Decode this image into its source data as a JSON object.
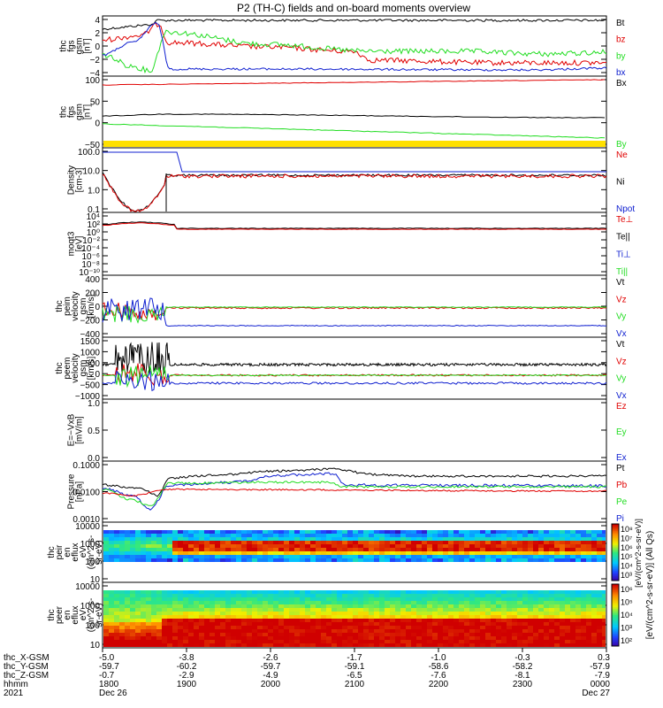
{
  "title": "P2 (TH-C) fields and on-board moments overview",
  "colors": {
    "black": "#000000",
    "red": "#e00000",
    "green": "#22dd22",
    "blue": "#1020d0",
    "yellow": "#ffe000"
  },
  "chart_data": [
    {
      "type": "line",
      "ylabel": [
        "thc",
        "fgs",
        "gsm",
        "[nT]"
      ],
      "yticks": [
        "4",
        "2",
        "0",
        "−2",
        "−4"
      ],
      "legend": [
        {
          "label": "Bt",
          "color": "black"
        },
        {
          "label": "bz",
          "color": "red"
        },
        {
          "label": "by",
          "color": "green"
        },
        {
          "label": "bx",
          "color": "blue"
        }
      ]
    },
    {
      "type": "line",
      "ylabel": [
        "thc",
        "fgs",
        "gsm",
        "[nT]"
      ],
      "yticks": [
        "100",
        "50",
        "0",
        "−50"
      ],
      "legend": [
        {
          "label": "Bx",
          "color": "black"
        },
        {
          "label": "By",
          "color": "green"
        }
      ]
    },
    {
      "type": "line",
      "ylabel": [
        "Density",
        "[cm-3]"
      ],
      "yticks": [
        "100.0",
        "10.0",
        "1.0",
        "0.1"
      ],
      "legend": [
        {
          "label": "Ne",
          "color": "red"
        },
        {
          "label": "Ni",
          "color": "black"
        },
        {
          "label": "Npot",
          "color": "blue"
        }
      ]
    },
    {
      "type": "line",
      "ylabel": [
        "moqt3",
        "[eV]"
      ],
      "yticks": [
        "10⁴",
        "10²",
        "10⁰",
        "10⁻²",
        "10⁻⁴",
        "10⁻⁶",
        "10⁻⁸",
        "10⁻¹⁰"
      ],
      "legend": [
        {
          "label": "Te⊥",
          "color": "red"
        },
        {
          "label": "Te||",
          "color": "black"
        },
        {
          "label": "Ti⊥",
          "color": "blue"
        },
        {
          "label": "Ti||",
          "color": "green"
        }
      ]
    },
    {
      "type": "line",
      "ylabel": [
        "thc",
        "peim",
        "velocity",
        "gsm",
        "[km/s]"
      ],
      "yticks": [
        "400",
        "200",
        "0",
        "−200",
        "−400"
      ],
      "legend": [
        {
          "label": "Vt",
          "color": "black"
        },
        {
          "label": "Vz",
          "color": "red"
        },
        {
          "label": "Vy",
          "color": "green"
        },
        {
          "label": "Vx",
          "color": "blue"
        }
      ]
    },
    {
      "type": "line",
      "ylabel": [
        "thc",
        "peem",
        "velocity",
        "gsm",
        "[km/s]"
      ],
      "yticks": [
        "1500",
        "1000",
        "500",
        "0",
        "−500",
        "−1000"
      ],
      "legend": [
        {
          "label": "Vt",
          "color": "black"
        },
        {
          "label": "Vz",
          "color": "red"
        },
        {
          "label": "Vy",
          "color": "green"
        },
        {
          "label": "Vx",
          "color": "blue"
        }
      ]
    },
    {
      "type": "line",
      "ylabel": [
        "E=−VxB",
        "[mV/m]"
      ],
      "yticks": [
        "1.0",
        "0.5",
        "0.0"
      ],
      "legend": [
        {
          "label": "Ez",
          "color": "red"
        },
        {
          "label": "Ey",
          "color": "green"
        },
        {
          "label": "Ex",
          "color": "blue"
        }
      ]
    },
    {
      "type": "line",
      "ylabel": [
        "Pressure",
        "[nPa]"
      ],
      "yticks": [
        "0.1000",
        "0.0100",
        "0.0010"
      ],
      "legend": [
        {
          "label": "Pt",
          "color": "black"
        },
        {
          "label": "Pb",
          "color": "red"
        },
        {
          "label": "Pe",
          "color": "green"
        },
        {
          "label": "Pi",
          "color": "blue"
        }
      ]
    },
    {
      "type": "heatmap",
      "ylabel": [
        "thc",
        "peir",
        "en",
        "eflux",
        "eV",
        "(cm^2-s-",
        "sr-eV)"
      ],
      "yticks": [
        "10000",
        "1000",
        "100",
        "10"
      ]
    },
    {
      "type": "heatmap",
      "ylabel": [
        "thc",
        "peer",
        "en",
        "eflux",
        "eV",
        "(cm^2-s-",
        "sr-eV)"
      ],
      "yticks": [
        "10000",
        "1000",
        "100",
        "10"
      ]
    }
  ],
  "colorbars": [
    {
      "ticks": [
        "10⁸",
        "10⁷",
        "10⁶",
        "10⁵",
        "10⁴",
        "10³"
      ]
    },
    {
      "ticks": [
        "10⁶",
        "10⁵",
        "10⁴",
        "10³",
        "10²"
      ]
    }
  ],
  "colorbar_label": "[eV/(cm^2-s-sr-eV)] (All Qs)",
  "colorbar_label_overlap": "[eV/(cm^2-s-sr-eV)]",
  "xaxis": {
    "row_labels": [
      "thc_X-GSM",
      "thc_Y-GSM",
      "thc_Z-GSM",
      "hhmm",
      "2021"
    ],
    "columns": [
      [
        "-5.0",
        "-59.7",
        "-0.7",
        "1800",
        "Dec 26"
      ],
      [
        "-3.8",
        "-60.2",
        "-2.9",
        "1900",
        ""
      ],
      [
        "-2.6",
        "-59.7",
        "-4.9",
        "2000",
        ""
      ],
      [
        "-1.7",
        "-59.1",
        "-6.5",
        "2100",
        ""
      ],
      [
        "-1.0",
        "-58.6",
        "-7.6",
        "2200",
        ""
      ],
      [
        "-0.3",
        "-58.2",
        "-8.1",
        "2300",
        ""
      ],
      [
        "0.3",
        "-57.9",
        "-7.9",
        "0000",
        "Dec 27"
      ]
    ]
  }
}
